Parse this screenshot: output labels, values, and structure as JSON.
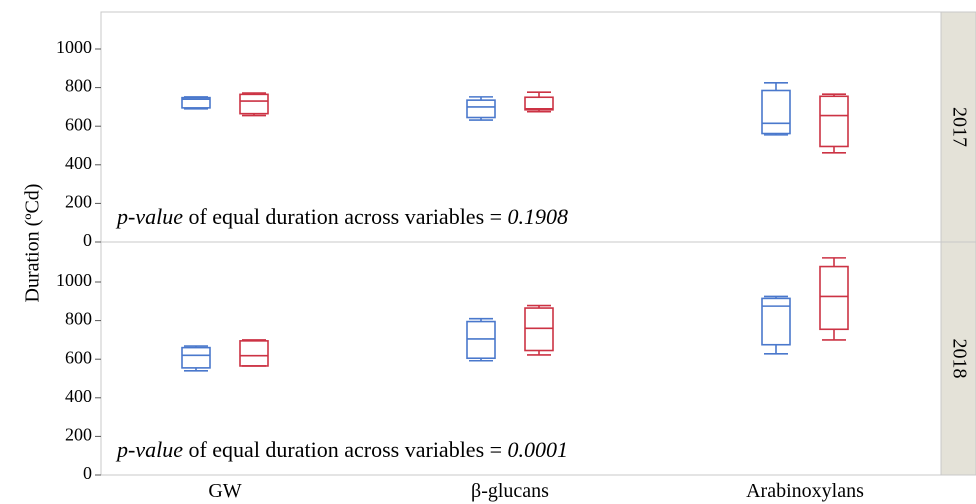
{
  "chart_data": {
    "type": "boxplot",
    "ylabel": "Duration (ºCd)",
    "categories": [
      "GW",
      "β-glucans",
      "Arabinoxylans"
    ],
    "ylim": [
      0,
      1100
    ],
    "yticks": [
      0,
      200,
      400,
      600,
      800,
      1000
    ],
    "grid": false,
    "series_colors": [
      "#4a78cc",
      "#cc3344"
    ],
    "panels": [
      {
        "label": "2017",
        "pvalue_prefix": "p-value",
        "pvalue_middle": " of equal duration across variables = ",
        "pvalue_value": "0.1908",
        "groups": [
          {
            "category": "GW",
            "boxes": [
              {
                "min": 690,
                "q1": 695,
                "median": 740,
                "q3": 748,
                "max": 752
              },
              {
                "min": 655,
                "q1": 665,
                "median": 730,
                "q3": 765,
                "max": 772
              }
            ]
          },
          {
            "category": "β-glucans",
            "boxes": [
              {
                "min": 632,
                "q1": 645,
                "median": 700,
                "q3": 735,
                "max": 752
              },
              {
                "min": 675,
                "q1": 685,
                "median": 690,
                "q3": 750,
                "max": 776
              }
            ]
          },
          {
            "category": "Arabinoxylans",
            "boxes": [
              {
                "min": 555,
                "q1": 562,
                "median": 615,
                "q3": 785,
                "max": 825
              },
              {
                "min": 462,
                "q1": 495,
                "median": 655,
                "q3": 755,
                "max": 766
              }
            ]
          }
        ]
      },
      {
        "label": "2018",
        "pvalue_prefix": "p-value",
        "pvalue_middle": " of equal duration across variables = ",
        "pvalue_value": "0.0001",
        "groups": [
          {
            "category": "GW",
            "boxes": [
              {
                "min": 540,
                "q1": 555,
                "median": 620,
                "q3": 660,
                "max": 668
              },
              {
                "min": 565,
                "q1": 565,
                "median": 618,
                "q3": 695,
                "max": 700
              }
            ]
          },
          {
            "category": "β-glucans",
            "boxes": [
              {
                "min": 592,
                "q1": 605,
                "median": 705,
                "q3": 795,
                "max": 810
              },
              {
                "min": 622,
                "q1": 645,
                "median": 760,
                "q3": 865,
                "max": 878
              }
            ]
          },
          {
            "category": "Arabinoxylans",
            "boxes": [
              {
                "min": 628,
                "q1": 675,
                "median": 875,
                "q3": 915,
                "max": 925
              },
              {
                "min": 700,
                "q1": 755,
                "median": 925,
                "q3": 1080,
                "max": 1125
              }
            ]
          }
        ]
      }
    ]
  }
}
